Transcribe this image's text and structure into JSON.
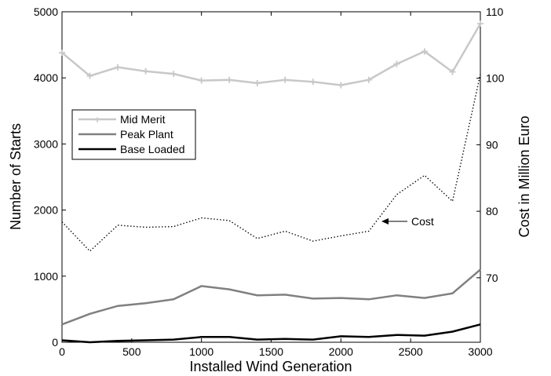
{
  "chart_data": {
    "type": "line",
    "xlabel": "Installed Wind Generation",
    "ylabel": "Number of Starts",
    "y2label": "Cost in Million Euro",
    "xlim": [
      0,
      3000
    ],
    "ylim": [
      0,
      5000
    ],
    "y2lim": [
      60.3,
      110
    ],
    "xticks": [
      0,
      500,
      1000,
      1500,
      2000,
      2500,
      3000
    ],
    "yticks": [
      0,
      1000,
      2000,
      3000,
      4000,
      5000
    ],
    "y2ticks": [
      70,
      80,
      90,
      100,
      110
    ],
    "grid": false,
    "legend_position": "left",
    "x": [
      0,
      200,
      400,
      600,
      800,
      1000,
      1200,
      1400,
      1600,
      1800,
      2000,
      2200,
      2400,
      2600,
      2800,
      3000
    ],
    "series": [
      {
        "name": "Mid Merit",
        "axis": "left",
        "color": "#c8c8c8",
        "style": "solid-plus",
        "values": [
          4380,
          4030,
          4160,
          4100,
          4060,
          3960,
          3970,
          3920,
          3970,
          3940,
          3890,
          3970,
          4210,
          4400,
          4090,
          4820
        ]
      },
      {
        "name": "Peak Plant",
        "axis": "left",
        "color": "#808080",
        "style": "solid",
        "values": [
          270,
          430,
          550,
          590,
          650,
          850,
          800,
          710,
          720,
          660,
          670,
          650,
          710,
          670,
          740,
          1100
        ]
      },
      {
        "name": "Base Loaded",
        "axis": "left",
        "color": "#000000",
        "style": "solid",
        "values": [
          30,
          0,
          20,
          30,
          40,
          80,
          80,
          40,
          50,
          40,
          90,
          80,
          110,
          100,
          160,
          270
        ]
      },
      {
        "name": "Cost",
        "axis": "right",
        "color": "#000000",
        "style": "dotted",
        "values": [
          78.4,
          74.0,
          77.9,
          77.6,
          77.7,
          79.0,
          78.6,
          75.9,
          77.0,
          75.5,
          76.3,
          77.0,
          82.5,
          85.4,
          81.5,
          100.6
        ]
      }
    ],
    "annotations": [
      {
        "text": "Cost",
        "x": 2320,
        "y_right": 77.0
      }
    ]
  }
}
